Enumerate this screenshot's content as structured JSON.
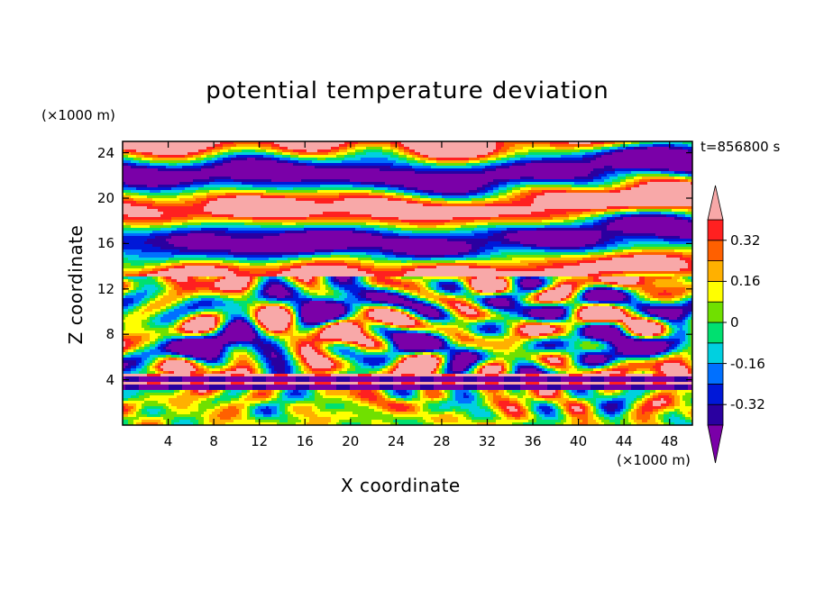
{
  "chart_data": {
    "type": "heatmap",
    "title": "potential temperature deviation",
    "xlabel": "X coordinate",
    "ylabel": "Z coordinate",
    "x_unit": "(×1000 m)",
    "y_unit": "(×1000 m)",
    "time_label": "t=856800 s",
    "xlim": [
      0,
      50
    ],
    "ylim": [
      0,
      25
    ],
    "x_ticks": [
      "4",
      "8",
      "12",
      "16",
      "20",
      "24",
      "28",
      "32",
      "36",
      "40",
      "44",
      "48"
    ],
    "y_ticks": [
      "4",
      "8",
      "12",
      "16",
      "20",
      "24"
    ],
    "colorbar": {
      "levels": [
        -0.4,
        -0.32,
        -0.24,
        -0.16,
        -0.08,
        0,
        0.08,
        0.16,
        0.24,
        0.32,
        0.4
      ],
      "colors": [
        "#7a00a8",
        "#2a00a0",
        "#0018d8",
        "#0070ff",
        "#00d0e0",
        "#00e070",
        "#70e000",
        "#ffff00",
        "#ffb000",
        "#ff6000",
        "#ff2020",
        "#f8a8a8"
      ],
      "labels": [
        "0.32",
        "0.16",
        "0",
        "-0.16",
        "-0.32"
      ],
      "label_values": [
        0.32,
        0.16,
        0,
        -0.16,
        -0.32
      ]
    },
    "field_description": [
      {
        "z_range": [
          0,
          3
        ],
        "character": "mixed green/yellow with blue and purple patches"
      },
      {
        "z_range": [
          3,
          4.5
        ],
        "character": "sharp alternating bands of pink and purple"
      },
      {
        "z_range": [
          4.5,
          13
        ],
        "character": "small-scale cells of all colors"
      },
      {
        "z_range": [
          13,
          25
        ],
        "character": "large horizontal layers of pink and purple"
      }
    ]
  }
}
